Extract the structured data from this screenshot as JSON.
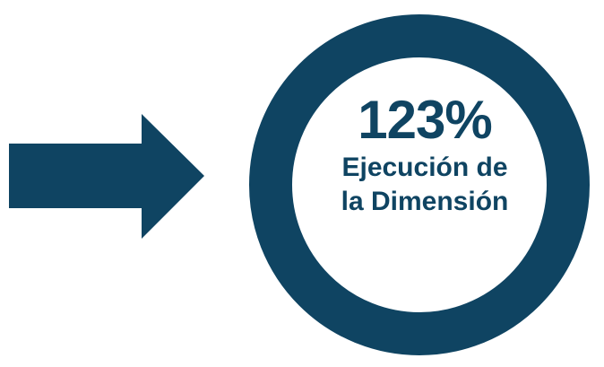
{
  "metric": {
    "value": "123%",
    "label_line1": "Ejecución de",
    "label_line2": "la Dimensión"
  },
  "colors": {
    "primary": "#0f4462",
    "background": "#ffffff"
  },
  "icons": {
    "arrow": "right-arrow-icon",
    "ring": "ring-icon"
  }
}
